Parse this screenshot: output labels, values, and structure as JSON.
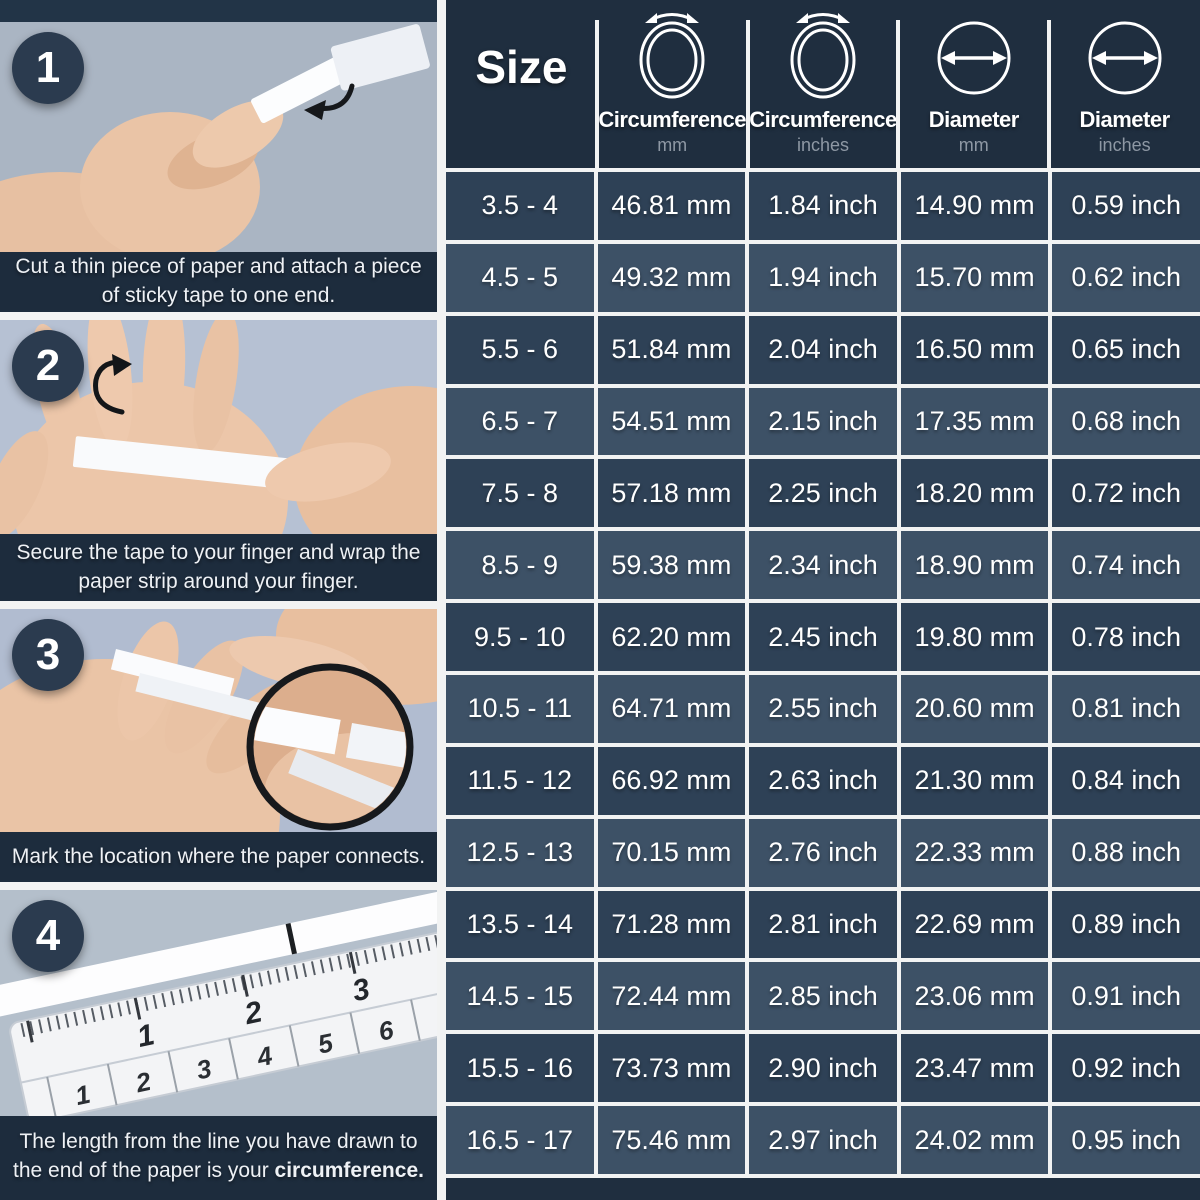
{
  "left_panel": {
    "steps": [
      {
        "number": "1",
        "caption": "Cut a thin piece of paper and attach a piece of sticky tape to one end.",
        "caption_bold": ""
      },
      {
        "number": "2",
        "caption": "Secure the tape to your finger and wrap the paper strip around your finger.",
        "caption_bold": ""
      },
      {
        "number": "3",
        "caption": "Mark the location where the paper connects.",
        "caption_bold": ""
      },
      {
        "number": "4",
        "caption": "The length from the line you have drawn to the end of the paper is your ",
        "caption_bold": "circumference."
      }
    ]
  },
  "table": {
    "size_header": "Size",
    "columns": [
      {
        "label": "Circumference",
        "unit": "mm",
        "icon": "ring-circumference-icon"
      },
      {
        "label": "Circumference",
        "unit": "inches",
        "icon": "ring-circumference-icon"
      },
      {
        "label": "Diameter",
        "unit": "mm",
        "icon": "ring-diameter-icon"
      },
      {
        "label": "Diameter",
        "unit": "inches",
        "icon": "ring-diameter-icon"
      }
    ],
    "rows": [
      {
        "size": "3.5 - 4",
        "circumference_mm": "46.81 mm",
        "circumference_in": "1.84 inch",
        "diameter_mm": "14.90 mm",
        "diameter_in": "0.59 inch"
      },
      {
        "size": "4.5 - 5",
        "circumference_mm": "49.32 mm",
        "circumference_in": "1.94 inch",
        "diameter_mm": "15.70 mm",
        "diameter_in": "0.62 inch"
      },
      {
        "size": "5.5 - 6",
        "circumference_mm": "51.84 mm",
        "circumference_in": "2.04 inch",
        "diameter_mm": "16.50 mm",
        "diameter_in": "0.65 inch"
      },
      {
        "size": "6.5 - 7",
        "circumference_mm": "54.51 mm",
        "circumference_in": "2.15 inch",
        "diameter_mm": "17.35 mm",
        "diameter_in": "0.68 inch"
      },
      {
        "size": "7.5 - 8",
        "circumference_mm": "57.18 mm",
        "circumference_in": "2.25 inch",
        "diameter_mm": "18.20 mm",
        "diameter_in": "0.72 inch"
      },
      {
        "size": "8.5 - 9",
        "circumference_mm": "59.38 mm",
        "circumference_in": "2.34 inch",
        "diameter_mm": "18.90 mm",
        "diameter_in": "0.74 inch"
      },
      {
        "size": "9.5 - 10",
        "circumference_mm": "62.20 mm",
        "circumference_in": "2.45 inch",
        "diameter_mm": "19.80 mm",
        "diameter_in": "0.78 inch"
      },
      {
        "size": "10.5 - 11",
        "circumference_mm": "64.71 mm",
        "circumference_in": "2.55 inch",
        "diameter_mm": "20.60 mm",
        "diameter_in": "0.81 inch"
      },
      {
        "size": "11.5 - 12",
        "circumference_mm": "66.92 mm",
        "circumference_in": "2.63 inch",
        "diameter_mm": "21.30 mm",
        "diameter_in": "0.84 inch"
      },
      {
        "size": "12.5 - 13",
        "circumference_mm": "70.15 mm",
        "circumference_in": "2.76 inch",
        "diameter_mm": "22.33 mm",
        "diameter_in": "0.88 inch"
      },
      {
        "size": "13.5 - 14",
        "circumference_mm": "71.28 mm",
        "circumference_in": "2.81 inch",
        "diameter_mm": "22.69 mm",
        "diameter_in": "0.89 inch"
      },
      {
        "size": "14.5 - 15",
        "circumference_mm": "72.44 mm",
        "circumference_in": "2.85 inch",
        "diameter_mm": "23.06 mm",
        "diameter_in": "0.91 inch"
      },
      {
        "size": "15.5 - 16",
        "circumference_mm": "73.73 mm",
        "circumference_in": "2.90 inch",
        "diameter_mm": "23.47 mm",
        "diameter_in": "0.92 inch"
      },
      {
        "size": "16.5 - 17",
        "circumference_mm": "75.46 mm",
        "circumference_in": "2.97 inch",
        "diameter_mm": "24.02 mm",
        "diameter_in": "0.95 inch"
      }
    ]
  },
  "colors": {
    "header_bg": "#1f2e3f",
    "row_dark": "#2e4156",
    "row_light": "#3d5166",
    "gridline": "#f2f3f3",
    "caption_bg": "#1d2c3d",
    "badge_bg": "#2b3b4f",
    "photo_bg": "#b0bbca",
    "unit_text": "#8e98a4",
    "text": "#ffffff"
  }
}
